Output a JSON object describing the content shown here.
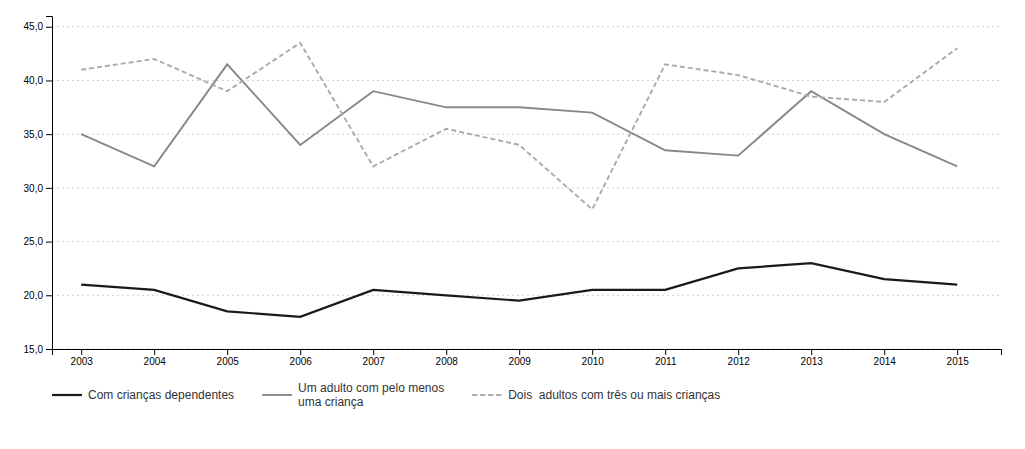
{
  "chart_data": {
    "type": "line",
    "x": [
      2003,
      2004,
      2005,
      2006,
      2007,
      2008,
      2009,
      2010,
      2011,
      2012,
      2013,
      2014,
      2015
    ],
    "series": [
      {
        "name": "Com crianças dependentes",
        "color": "#1a1a1a",
        "line_style": "solid",
        "values": [
          21.0,
          20.5,
          18.5,
          18.0,
          20.5,
          20.0,
          19.5,
          20.5,
          20.5,
          22.5,
          23.0,
          21.5,
          21.0
        ]
      },
      {
        "name": "Um adulto com pelo menos\numa criança",
        "color": "#888888",
        "line_style": "solid",
        "values": [
          35.0,
          32.0,
          41.5,
          34.0,
          39.0,
          37.5,
          37.5,
          37.0,
          33.5,
          33.0,
          39.0,
          35.0,
          32.0
        ]
      },
      {
        "name": "Dois  adultos com três ou mais crianças",
        "color": "#aaaaaa",
        "line_style": "dashed",
        "values": [
          41.0,
          42.0,
          39.0,
          43.5,
          32.0,
          35.5,
          34.0,
          28.0,
          41.5,
          40.5,
          38.5,
          38.0,
          43.0
        ]
      }
    ],
    "xlim": [
      2002.6,
      2015.6
    ],
    "xticks": [
      2003,
      2004,
      2005,
      2006,
      2007,
      2008,
      2009,
      2010,
      2011,
      2012,
      2013,
      2014,
      2015
    ],
    "ylim": [
      15.0,
      46.0
    ],
    "yticks": [
      {
        "value": 15.0,
        "label": "15,0"
      },
      {
        "value": 20.0,
        "label": "20,0"
      },
      {
        "value": 25.0,
        "label": "25,0"
      },
      {
        "value": 30.0,
        "label": "30,0"
      },
      {
        "value": 35.0,
        "label": "35,0"
      },
      {
        "value": 40.0,
        "label": "40,0"
      },
      {
        "value": 45.0,
        "label": "45,0"
      }
    ],
    "grid": true,
    "legend": "bottom"
  }
}
